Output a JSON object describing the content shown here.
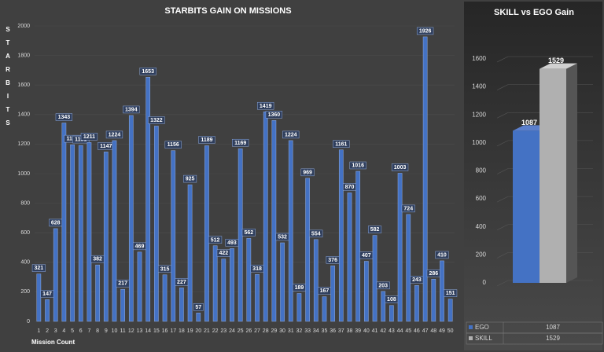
{
  "chart_data": [
    {
      "type": "bar",
      "title": "STARBITS GAIN ON MISSIONS",
      "y_label": "STARBITS",
      "x_label": "Mission Count",
      "categories": [
        "1",
        "2",
        "3",
        "4",
        "5",
        "6",
        "7",
        "8",
        "9",
        "10",
        "11",
        "12",
        "13",
        "14",
        "15",
        "16",
        "17",
        "18",
        "19",
        "20",
        "21",
        "22",
        "23",
        "24",
        "25",
        "26",
        "27",
        "28",
        "29",
        "30",
        "31",
        "32",
        "33",
        "34",
        "35",
        "36",
        "37",
        "38",
        "39",
        "40",
        "41",
        "42",
        "43",
        "44",
        "45",
        "46",
        "47",
        "48",
        "49",
        "50"
      ],
      "values": [
        321,
        147,
        628,
        1343,
        1196,
        1191,
        1211,
        382,
        1147,
        1224,
        217,
        1394,
        469,
        1653,
        1322,
        315,
        1156,
        227,
        925,
        57,
        1189,
        512,
        422,
        493,
        1169,
        562,
        318,
        1419,
        1360,
        532,
        1224,
        189,
        969,
        554,
        167,
        376,
        1161,
        870,
        1016,
        407,
        582,
        203,
        108,
        1003,
        724,
        243,
        1926,
        286,
        410,
        151
      ],
      "color": "#4472c4",
      "ylim": [
        0,
        2000
      ],
      "yticks": [
        0,
        200,
        400,
        600,
        800,
        1000,
        1200,
        1400,
        1600,
        1800,
        2000
      ],
      "grid": true
    },
    {
      "type": "bar3d",
      "title": "SKILL vs EGO Gain",
      "categories": [
        "EGO",
        "SKILL"
      ],
      "values": [
        1087,
        1529
      ],
      "colors": [
        "#4472c4",
        "#b0b0b0"
      ],
      "ylim": [
        0,
        1600
      ],
      "yticks": [
        0,
        200,
        400,
        600,
        800,
        1000,
        1200,
        1400,
        1600
      ],
      "grid": true,
      "data_table": true
    }
  ]
}
